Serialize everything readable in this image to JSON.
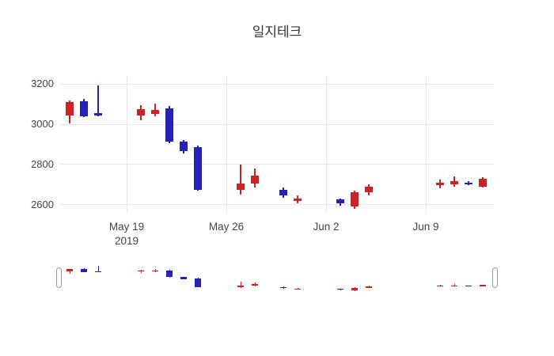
{
  "title": "일지테크",
  "chart_data": {
    "type": "candlestick",
    "title": "일지테크",
    "legend": "none",
    "grid": "on",
    "x_axis": {
      "ticks": [
        {
          "label": "May 19",
          "sublabel": "2019",
          "day": 7
        },
        {
          "label": "May 26",
          "sublabel": "",
          "day": 14
        },
        {
          "label": "Jun 2",
          "sublabel": "",
          "day": 21
        },
        {
          "label": "Jun 9",
          "sublabel": "",
          "day": 28
        }
      ]
    },
    "y_axis": {
      "ticks": [
        3200,
        3000,
        2800,
        2600
      ],
      "range": [
        2555,
        3245
      ]
    },
    "colors": {
      "increasing": "#cc2222",
      "decreasing": "#2323b8",
      "grid": "#e8e8e8",
      "text": "#444444"
    },
    "candles": [
      {
        "date": "2019-05-15",
        "day": 3,
        "open": 3045,
        "high": 3120,
        "low": 3005,
        "close": 3110
      },
      {
        "date": "2019-05-16",
        "day": 4,
        "open": 3115,
        "high": 3125,
        "low": 3035,
        "close": 3040
      },
      {
        "date": "2019-05-17",
        "day": 5,
        "open": 3055,
        "high": 3195,
        "low": 3040,
        "close": 3045
      },
      {
        "date": "2019-05-20",
        "day": 8,
        "open": 3045,
        "high": 3095,
        "low": 3020,
        "close": 3075
      },
      {
        "date": "2019-05-21",
        "day": 9,
        "open": 3050,
        "high": 3105,
        "low": 3040,
        "close": 3070
      },
      {
        "date": "2019-05-22",
        "day": 10,
        "open": 3080,
        "high": 3090,
        "low": 2905,
        "close": 2915
      },
      {
        "date": "2019-05-23",
        "day": 11,
        "open": 2915,
        "high": 2920,
        "low": 2855,
        "close": 2865
      },
      {
        "date": "2019-05-24",
        "day": 12,
        "open": 2885,
        "high": 2895,
        "low": 2670,
        "close": 2675
      },
      {
        "date": "2019-05-27",
        "day": 15,
        "open": 2675,
        "high": 2800,
        "low": 2650,
        "close": 2705
      },
      {
        "date": "2019-05-28",
        "day": 16,
        "open": 2705,
        "high": 2780,
        "low": 2685,
        "close": 2745
      },
      {
        "date": "2019-05-30",
        "day": 18,
        "open": 2675,
        "high": 2685,
        "low": 2635,
        "close": 2645
      },
      {
        "date": "2019-05-31",
        "day": 19,
        "open": 2620,
        "high": 2645,
        "low": 2608,
        "close": 2630
      },
      {
        "date": "2019-06-03",
        "day": 22,
        "open": 2625,
        "high": 2630,
        "low": 2595,
        "close": 2605
      },
      {
        "date": "2019-06-04",
        "day": 23,
        "open": 2590,
        "high": 2670,
        "low": 2580,
        "close": 2660
      },
      {
        "date": "2019-06-05",
        "day": 24,
        "open": 2660,
        "high": 2700,
        "low": 2645,
        "close": 2690
      },
      {
        "date": "2019-06-10",
        "day": 29,
        "open": 2695,
        "high": 2725,
        "low": 2680,
        "close": 2710
      },
      {
        "date": "2019-06-11",
        "day": 30,
        "open": 2700,
        "high": 2740,
        "low": 2690,
        "close": 2715
      },
      {
        "date": "2019-06-12",
        "day": 31,
        "open": 2710,
        "high": 2715,
        "low": 2695,
        "close": 2700
      },
      {
        "date": "2019-06-13",
        "day": 32,
        "open": 2690,
        "high": 2735,
        "low": 2685,
        "close": 2730
      }
    ]
  }
}
